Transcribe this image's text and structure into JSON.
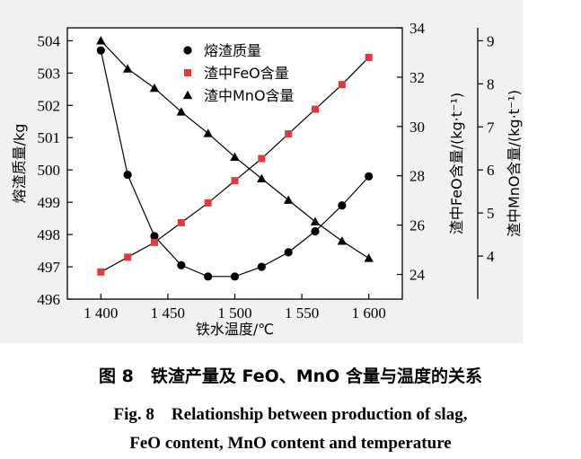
{
  "chart_data": {
    "type": "line",
    "x": [
      1400,
      1420,
      1440,
      1460,
      1480,
      1500,
      1520,
      1540,
      1560,
      1580,
      1600
    ],
    "x_ticks": [
      1400,
      1450,
      1500,
      1550,
      1600
    ],
    "x_tick_labels": [
      "1 400",
      "1 450",
      "1 500",
      "1 550",
      "1 600"
    ],
    "xlabel": "铁水温度/℃",
    "xlim": [
      1375,
      1625
    ],
    "axes": {
      "left": {
        "label": "熔渣质量/kg",
        "ylim": [
          496,
          504.4
        ],
        "ticks": [
          496,
          497,
          498,
          499,
          500,
          501,
          502,
          503,
          504
        ]
      },
      "right1": {
        "label": "渣中FeO含量/(kg·t⁻¹)",
        "ylim": [
          23,
          34
        ],
        "ticks": [
          24,
          26,
          28,
          30,
          32,
          34
        ]
      },
      "right2": {
        "label": "渣中MnO含量/(kg·t⁻¹)",
        "ylim": [
          3,
          9.3
        ],
        "ticks": [
          4,
          5,
          6,
          7,
          8,
          9
        ]
      }
    },
    "series": [
      {
        "name": "熔渣质量",
        "axis": "left",
        "marker": "circle",
        "color": "#000000",
        "values": [
          503.7,
          499.85,
          497.95,
          497.05,
          496.7,
          496.7,
          497.0,
          497.45,
          498.1,
          498.9,
          499.8
        ]
      },
      {
        "name": "渣中FeO含量",
        "axis": "right1",
        "marker": "square",
        "color": "#e0393e",
        "values": [
          24.1,
          24.7,
          25.3,
          26.1,
          26.9,
          27.8,
          28.7,
          29.7,
          30.7,
          31.7,
          32.8
        ]
      },
      {
        "name": "渣中MnO含量",
        "axis": "right2",
        "marker": "triangle",
        "color": "#000000",
        "values": [
          9.0,
          8.35,
          7.9,
          7.35,
          6.85,
          6.3,
          5.8,
          5.3,
          4.8,
          4.35,
          3.95
        ]
      }
    ],
    "legend_position": "top-center",
    "grid": false
  },
  "caption": {
    "zh": "图 8　铁渣产量及 FeO、MnO 含量与温度的关系",
    "en_line1": "Fig. 8　Relationship between production of slag,",
    "en_line2": "FeO content, MnO content and temperature"
  }
}
